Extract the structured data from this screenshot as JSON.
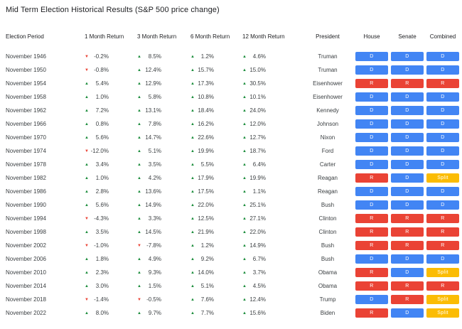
{
  "title": "Mid Term Election Historical Results (S&P 500 price change)",
  "badge_colors": {
    "D": "#4285f4",
    "R": "#ea4335",
    "Split": "#fbbc04"
  },
  "arrow_colors": {
    "up": "#1e8e3e",
    "down": "#ea4335"
  },
  "arrow_glyphs": {
    "up": "▲",
    "down": "▼"
  },
  "chart_data": {
    "type": "table",
    "title": "Mid Term Election Historical Results (S&P 500 price change)",
    "columns": [
      "Election Period",
      "1 Month Return",
      "3 Month Return",
      "6 Month Return",
      "12 Month Return",
      "President",
      "House",
      "Senate",
      "Combined"
    ],
    "rows": [
      {
        "period": "November 1946",
        "returns": [
          {
            "dir": "down",
            "value": "-0.2%"
          },
          {
            "dir": "up",
            "value": "8.5%"
          },
          {
            "dir": "up",
            "value": "1.2%"
          },
          {
            "dir": "up",
            "value": "4.6%"
          }
        ],
        "president": "Truman",
        "house": "D",
        "senate": "D",
        "combined": "D"
      },
      {
        "period": "November 1950",
        "returns": [
          {
            "dir": "down",
            "value": "-0.8%"
          },
          {
            "dir": "up",
            "value": "12.4%"
          },
          {
            "dir": "up",
            "value": "15.7%"
          },
          {
            "dir": "up",
            "value": "15.0%"
          }
        ],
        "president": "Truman",
        "house": "D",
        "senate": "D",
        "combined": "D"
      },
      {
        "period": "November 1954",
        "returns": [
          {
            "dir": "up",
            "value": "5.4%"
          },
          {
            "dir": "up",
            "value": "12.9%"
          },
          {
            "dir": "up",
            "value": "17.3%"
          },
          {
            "dir": "up",
            "value": "30.5%"
          }
        ],
        "president": "Eisenhower",
        "house": "R",
        "senate": "R",
        "combined": "R"
      },
      {
        "period": "November 1958",
        "returns": [
          {
            "dir": "up",
            "value": "1.0%"
          },
          {
            "dir": "up",
            "value": "5.8%"
          },
          {
            "dir": "up",
            "value": "10.8%"
          },
          {
            "dir": "up",
            "value": "10.1%"
          }
        ],
        "president": "Eisenhower",
        "house": "D",
        "senate": "D",
        "combined": "D"
      },
      {
        "period": "November 1962",
        "returns": [
          {
            "dir": "up",
            "value": "7.2%"
          },
          {
            "dir": "up",
            "value": "13.1%"
          },
          {
            "dir": "up",
            "value": "18.4%"
          },
          {
            "dir": "up",
            "value": "24.0%"
          }
        ],
        "president": "Kennedy",
        "house": "D",
        "senate": "D",
        "combined": "D"
      },
      {
        "period": "November 1966",
        "returns": [
          {
            "dir": "up",
            "value": "0.8%"
          },
          {
            "dir": "up",
            "value": "7.8%"
          },
          {
            "dir": "up",
            "value": "16.2%"
          },
          {
            "dir": "up",
            "value": "12.0%"
          }
        ],
        "president": "Johnson",
        "house": "D",
        "senate": "D",
        "combined": "D"
      },
      {
        "period": "November 1970",
        "returns": [
          {
            "dir": "up",
            "value": "5.6%"
          },
          {
            "dir": "up",
            "value": "14.7%"
          },
          {
            "dir": "up",
            "value": "22.6%"
          },
          {
            "dir": "up",
            "value": "12.7%"
          }
        ],
        "president": "Nixon",
        "house": "D",
        "senate": "D",
        "combined": "D"
      },
      {
        "period": "November 1974",
        "returns": [
          {
            "dir": "down",
            "value": "-12.0%"
          },
          {
            "dir": "up",
            "value": "5.1%"
          },
          {
            "dir": "up",
            "value": "19.9%"
          },
          {
            "dir": "up",
            "value": "18.7%"
          }
        ],
        "president": "Ford",
        "house": "D",
        "senate": "D",
        "combined": "D"
      },
      {
        "period": "November 1978",
        "returns": [
          {
            "dir": "up",
            "value": "3.4%"
          },
          {
            "dir": "up",
            "value": "3.5%"
          },
          {
            "dir": "up",
            "value": "5.5%"
          },
          {
            "dir": "up",
            "value": "6.4%"
          }
        ],
        "president": "Carter",
        "house": "D",
        "senate": "D",
        "combined": "D"
      },
      {
        "period": "November 1982",
        "returns": [
          {
            "dir": "up",
            "value": "1.0%"
          },
          {
            "dir": "up",
            "value": "4.2%"
          },
          {
            "dir": "up",
            "value": "17.9%"
          },
          {
            "dir": "up",
            "value": "19.9%"
          }
        ],
        "president": "Reagan",
        "house": "R",
        "senate": "D",
        "combined": "Split"
      },
      {
        "period": "November 1986",
        "returns": [
          {
            "dir": "up",
            "value": "2.8%"
          },
          {
            "dir": "up",
            "value": "13.6%"
          },
          {
            "dir": "up",
            "value": "17.5%"
          },
          {
            "dir": "up",
            "value": "1.1%"
          }
        ],
        "president": "Reagan",
        "house": "D",
        "senate": "D",
        "combined": "D"
      },
      {
        "period": "November 1990",
        "returns": [
          {
            "dir": "up",
            "value": "5.6%"
          },
          {
            "dir": "up",
            "value": "14.9%"
          },
          {
            "dir": "up",
            "value": "22.0%"
          },
          {
            "dir": "up",
            "value": "25.1%"
          }
        ],
        "president": "Bush",
        "house": "D",
        "senate": "D",
        "combined": "D"
      },
      {
        "period": "November 1994",
        "returns": [
          {
            "dir": "down",
            "value": "-4.3%"
          },
          {
            "dir": "up",
            "value": "3.3%"
          },
          {
            "dir": "up",
            "value": "12.5%"
          },
          {
            "dir": "up",
            "value": "27.1%"
          }
        ],
        "president": "Clinton",
        "house": "R",
        "senate": "R",
        "combined": "R"
      },
      {
        "period": "November 1998",
        "returns": [
          {
            "dir": "up",
            "value": "3.5%"
          },
          {
            "dir": "up",
            "value": "14.5%"
          },
          {
            "dir": "up",
            "value": "21.9%"
          },
          {
            "dir": "up",
            "value": "22.0%"
          }
        ],
        "president": "Clinton",
        "house": "R",
        "senate": "R",
        "combined": "R"
      },
      {
        "period": "November 2002",
        "returns": [
          {
            "dir": "down",
            "value": "-1.0%"
          },
          {
            "dir": "down",
            "value": "-7.8%"
          },
          {
            "dir": "up",
            "value": "1.2%"
          },
          {
            "dir": "up",
            "value": "14.9%"
          }
        ],
        "president": "Bush",
        "house": "R",
        "senate": "R",
        "combined": "R"
      },
      {
        "period": "November 2006",
        "returns": [
          {
            "dir": "up",
            "value": "1.8%"
          },
          {
            "dir": "up",
            "value": "4.9%"
          },
          {
            "dir": "up",
            "value": "9.2%"
          },
          {
            "dir": "up",
            "value": "6.7%"
          }
        ],
        "president": "Bush",
        "house": "D",
        "senate": "D",
        "combined": "D"
      },
      {
        "period": "November 2010",
        "returns": [
          {
            "dir": "up",
            "value": "2.3%"
          },
          {
            "dir": "up",
            "value": "9.3%"
          },
          {
            "dir": "up",
            "value": "14.0%"
          },
          {
            "dir": "up",
            "value": "3.7%"
          }
        ],
        "president": "Obama",
        "house": "R",
        "senate": "D",
        "combined": "Split"
      },
      {
        "period": "November 2014",
        "returns": [
          {
            "dir": "up",
            "value": "3.0%"
          },
          {
            "dir": "up",
            "value": "1.5%"
          },
          {
            "dir": "up",
            "value": "5.1%"
          },
          {
            "dir": "up",
            "value": "4.5%"
          }
        ],
        "president": "Obama",
        "house": "R",
        "senate": "R",
        "combined": "R"
      },
      {
        "period": "November 2018",
        "returns": [
          {
            "dir": "down",
            "value": "-1.4%"
          },
          {
            "dir": "down",
            "value": "-0.5%"
          },
          {
            "dir": "up",
            "value": "7.6%"
          },
          {
            "dir": "up",
            "value": "12.4%"
          }
        ],
        "president": "Trump",
        "house": "D",
        "senate": "R",
        "combined": "Split"
      },
      {
        "period": "November 2022",
        "returns": [
          {
            "dir": "up",
            "value": "8.0%"
          },
          {
            "dir": "up",
            "value": "9.7%"
          },
          {
            "dir": "up",
            "value": "7.7%"
          },
          {
            "dir": "up",
            "value": "15.6%"
          }
        ],
        "president": "Biden",
        "house": "R",
        "senate": "D",
        "combined": "Split"
      }
    ]
  }
}
